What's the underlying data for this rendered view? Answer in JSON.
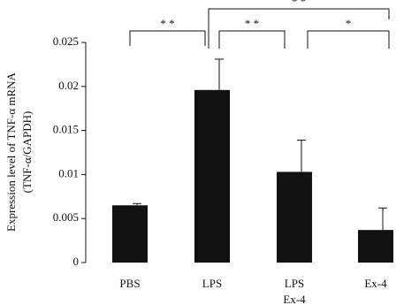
{
  "chart_data": {
    "type": "bar",
    "y_label": [
      "Expression level of TNF-α mRNA",
      "(TNF-α/GAPDH)"
    ],
    "categories": [
      [
        "PBS"
      ],
      [
        "LPS"
      ],
      [
        "LPS",
        "Ex-4"
      ],
      [
        "Ex-4"
      ]
    ],
    "values": [
      0.0065,
      0.0196,
      0.0103,
      0.0037
    ],
    "errors": [
      0.0002,
      0.0035,
      0.0036,
      0.0025
    ],
    "color": "#111111",
    "ylim": [
      0,
      0.025
    ],
    "yticks": [
      0,
      0.005,
      0.01,
      0.015,
      0.02,
      0.025
    ],
    "annotations": [
      "* *",
      "* *",
      "* *",
      "*"
    ]
  }
}
